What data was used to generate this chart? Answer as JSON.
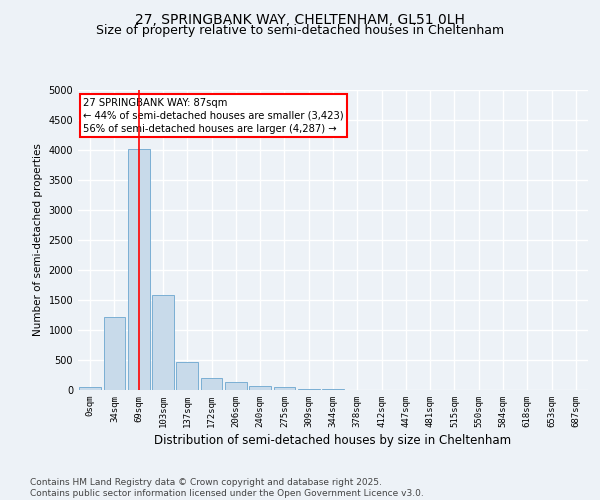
{
  "title_line1": "27, SPRINGBANK WAY, CHELTENHAM, GL51 0LH",
  "title_line2": "Size of property relative to semi-detached houses in Cheltenham",
  "xlabel": "Distribution of semi-detached houses by size in Cheltenham",
  "ylabel": "Number of semi-detached properties",
  "categories": [
    "0sqm",
    "34sqm",
    "69sqm",
    "103sqm",
    "137sqm",
    "172sqm",
    "206sqm",
    "240sqm",
    "275sqm",
    "309sqm",
    "344sqm",
    "378sqm",
    "412sqm",
    "447sqm",
    "481sqm",
    "515sqm",
    "550sqm",
    "584sqm",
    "618sqm",
    "653sqm",
    "687sqm"
  ],
  "values": [
    55,
    1220,
    4020,
    1590,
    470,
    195,
    135,
    75,
    45,
    25,
    10,
    3,
    1,
    0,
    0,
    0,
    0,
    0,
    0,
    0,
    0
  ],
  "bar_color": "#c8daea",
  "bar_edge_color": "#7bafd4",
  "red_line_index": 2,
  "annotation_text": "27 SPRINGBANK WAY: 87sqm\n← 44% of semi-detached houses are smaller (3,423)\n56% of semi-detached houses are larger (4,287) →",
  "annotation_box_color": "white",
  "annotation_box_edge": "red",
  "ylim": [
    0,
    5000
  ],
  "yticks": [
    0,
    500,
    1000,
    1500,
    2000,
    2500,
    3000,
    3500,
    4000,
    4500,
    5000
  ],
  "footnote": "Contains HM Land Registry data © Crown copyright and database right 2025.\nContains public sector information licensed under the Open Government Licence v3.0.",
  "bg_color": "#edf2f7",
  "grid_color": "white",
  "title_fontsize": 10,
  "subtitle_fontsize": 9,
  "tick_fontsize": 6.5,
  "footnote_fontsize": 6.5
}
